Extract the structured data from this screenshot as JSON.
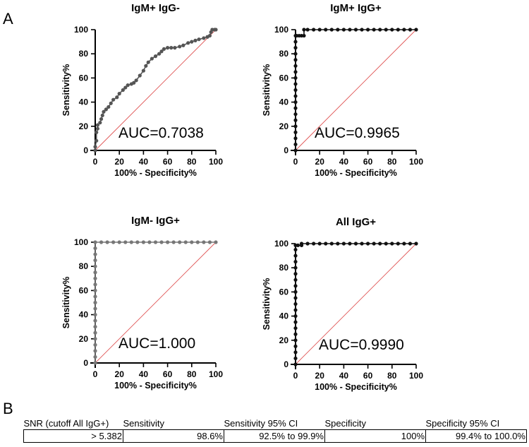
{
  "panel_labels": {
    "a": "A",
    "b": "B"
  },
  "chart_data": [
    {
      "type": "line",
      "title": "IgM+ IgG-",
      "xlabel": "100% - Specificity%",
      "ylabel": "Sensitivity%",
      "xlim": [
        0,
        100
      ],
      "ylim": [
        0,
        100
      ],
      "ticks": [
        0,
        20,
        40,
        60,
        80,
        100
      ],
      "annotation": "AUC=0.7038",
      "series": [
        {
          "x": [
            0,
            0,
            1,
            1,
            2,
            2,
            4,
            5,
            6,
            7,
            9,
            11,
            13,
            15,
            18,
            20,
            23,
            25,
            27,
            30,
            32,
            34,
            37,
            40,
            42,
            44,
            47,
            50,
            53,
            55,
            57,
            60,
            63,
            66,
            70,
            73,
            77,
            80,
            83,
            86,
            90,
            93,
            95,
            96,
            97,
            99,
            100
          ],
          "y": [
            0,
            3,
            8,
            15,
            18,
            21,
            23,
            26,
            29,
            32,
            34,
            36,
            39,
            42,
            44,
            47,
            50,
            52,
            54,
            55,
            56,
            58,
            62,
            66,
            70,
            73,
            76,
            78,
            80,
            82,
            84,
            85,
            85,
            85,
            86,
            87,
            89,
            90,
            91,
            92,
            93,
            94,
            95,
            98,
            100,
            100,
            100
          ]
        }
      ],
      "reference": {
        "x": [
          0,
          100
        ],
        "y": [
          0,
          100
        ],
        "color": "#e05555"
      },
      "line_color": "#555555"
    },
    {
      "type": "line",
      "title": "IgM+ IgG+",
      "xlabel": "100% - Specificity%",
      "ylabel": "Sensitivity%",
      "xlim": [
        0,
        100
      ],
      "ylim": [
        0,
        100
      ],
      "ticks": [
        0,
        20,
        40,
        60,
        80,
        100
      ],
      "annotation": "AUC=0.9965",
      "series": [
        {
          "x": [
            0,
            0,
            0,
            0,
            0,
            0,
            0,
            0,
            0,
            0,
            0,
            0,
            0,
            0,
            0,
            0,
            0,
            0,
            0,
            0,
            1,
            3,
            5,
            7,
            7,
            10,
            15,
            20,
            25,
            30,
            35,
            40,
            45,
            50,
            55,
            60,
            65,
            70,
            75,
            80,
            85,
            90,
            95,
            100
          ],
          "y": [
            0,
            5,
            10,
            15,
            20,
            25,
            30,
            35,
            40,
            45,
            50,
            55,
            60,
            65,
            70,
            75,
            80,
            85,
            90,
            95,
            95,
            95,
            95,
            95,
            100,
            100,
            100,
            100,
            100,
            100,
            100,
            100,
            100,
            100,
            100,
            100,
            100,
            100,
            100,
            100,
            100,
            100,
            100,
            100
          ]
        }
      ],
      "reference": {
        "x": [
          0,
          100
        ],
        "y": [
          0,
          100
        ],
        "color": "#e05555"
      },
      "line_color": "#111111"
    },
    {
      "type": "line",
      "title": "IgM- IgG+",
      "xlabel": "100% - Specificity%",
      "ylabel": "Sensitivity%",
      "xlim": [
        0,
        100
      ],
      "ylim": [
        0,
        100
      ],
      "ticks": [
        0,
        20,
        40,
        60,
        80,
        100
      ],
      "annotation": "AUC=1.000",
      "series": [
        {
          "x": [
            0,
            0,
            0,
            0,
            0,
            0,
            0,
            0,
            0,
            0,
            0,
            0,
            0,
            0,
            0,
            0,
            0,
            0,
            0,
            0,
            0,
            5,
            10,
            15,
            20,
            25,
            30,
            35,
            40,
            45,
            50,
            55,
            60,
            65,
            70,
            75,
            80,
            85,
            90,
            95,
            100
          ],
          "y": [
            0,
            5,
            10,
            15,
            20,
            25,
            30,
            35,
            40,
            45,
            50,
            55,
            60,
            65,
            70,
            75,
            80,
            85,
            90,
            95,
            100,
            100,
            100,
            100,
            100,
            100,
            100,
            100,
            100,
            100,
            100,
            100,
            100,
            100,
            100,
            100,
            100,
            100,
            100,
            100,
            100
          ]
        }
      ],
      "reference": {
        "x": [
          0,
          100
        ],
        "y": [
          0,
          100
        ],
        "color": "#e05555"
      },
      "line_color": "#777777"
    },
    {
      "type": "line",
      "title": "All IgG+",
      "xlabel": "100% - Specificity%",
      "ylabel": "Sensitivity%",
      "xlim": [
        0,
        100
      ],
      "ylim": [
        0,
        100
      ],
      "ticks": [
        0,
        20,
        40,
        60,
        80,
        100
      ],
      "annotation": "AUC=0.9990",
      "series": [
        {
          "x": [
            0,
            0,
            0,
            0,
            0,
            0,
            0,
            0,
            0,
            0,
            0,
            0,
            0,
            0,
            0,
            0,
            0,
            0,
            0,
            0,
            0,
            2,
            5,
            5,
            10,
            15,
            20,
            25,
            30,
            35,
            40,
            45,
            50,
            55,
            60,
            65,
            70,
            75,
            80,
            85,
            90,
            95,
            100
          ],
          "y": [
            0,
            5,
            10,
            15,
            20,
            25,
            30,
            35,
            40,
            45,
            50,
            55,
            60,
            65,
            70,
            75,
            80,
            85,
            90,
            95,
            98.6,
            98.6,
            98.6,
            100,
            100,
            100,
            100,
            100,
            100,
            100,
            100,
            100,
            100,
            100,
            100,
            100,
            100,
            100,
            100,
            100,
            100,
            100,
            100
          ]
        }
      ],
      "reference": {
        "x": [
          0,
          100
        ],
        "y": [
          0,
          100
        ],
        "color": "#e05555"
      },
      "line_color": "#111111"
    }
  ],
  "table": {
    "headers": [
      "SNR (cutoff All IgG+)",
      "Sensitivity",
      "Sensitivity 95% CI",
      "Specificity",
      "Specificity 95% CI"
    ],
    "row": [
      "> 5.382",
      "98.6%",
      "92.5% to 99.9%",
      "100%",
      "99.4% to 100.0%"
    ]
  }
}
